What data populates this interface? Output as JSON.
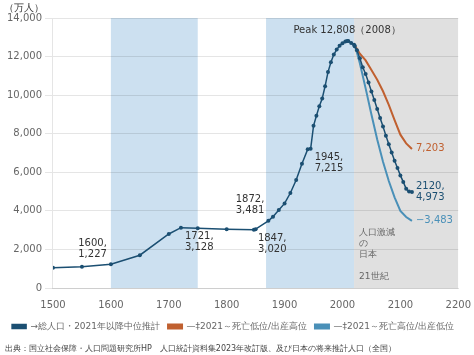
{
  "chart_data": {
    "type": "line",
    "ylabel": "（万人）",
    "source": "出典：国立社会保障・人口問題研究所HP　人口統計資料集2023年改訂版、及び日本の将来推計人口（全国）",
    "xlim": [
      1500,
      2200
    ],
    "ylim": [
      0,
      14000
    ],
    "xticks": [
      1500,
      1600,
      1700,
      1800,
      1900,
      2000,
      2100,
      2200
    ],
    "yticks": [
      0,
      {
        "value": 2000,
        "label": "2,000"
      },
      {
        "value": 4000,
        "label": "4,000"
      },
      {
        "value": 6000,
        "label": "6,000"
      },
      {
        "value": 8000,
        "label": "8,000"
      },
      {
        "value": 10000,
        "label": "10,000"
      },
      {
        "value": 12000,
        "label": "12,000"
      },
      {
        "value": 14000,
        "label": "14,000"
      }
    ],
    "grid": "y",
    "legend": "bottom",
    "shaded_regions": [
      {
        "x": [
          1600,
          1750
        ],
        "color": "#cce0f0"
      },
      {
        "x": [
          1868,
          2020
        ],
        "color": "#cce0f0"
      },
      {
        "x": [
          2020,
          2200
        ],
        "color": "#e0e0e0",
        "label": "人口激減\nの\n日本\n\n21世紀"
      }
    ],
    "series": [
      {
        "name": "→総人口・2021年以降中位推計",
        "color": "#1b4f72",
        "marker": "o",
        "end_label": "2120,\n4,973",
        "x": [
          1500,
          1550,
          1600,
          1650,
          1700,
          1721,
          1750,
          1800,
          1847,
          1850,
          1872,
          1880,
          1890,
          1900,
          1910,
          1920,
          1930,
          1940,
          1945,
          1950,
          1955,
          1960,
          1965,
          1970,
          1975,
          1980,
          1985,
          1990,
          1995,
          2000,
          2005,
          2008,
          2010,
          2015,
          2020,
          2021,
          2021,
          2025,
          2030,
          2035,
          2040,
          2045,
          2050,
          2055,
          2060,
          2065,
          2070,
          2075,
          2080,
          2085,
          2090,
          2095,
          2100,
          2105,
          2110,
          2115,
          2120
        ],
        "values": [
          1050,
          1100,
          1227,
          1700,
          2800,
          3128,
          3100,
          3050,
          3020,
          3050,
          3481,
          3700,
          4050,
          4385,
          4925,
          5596,
          6445,
          7193,
          7215,
          8411,
          8928,
          9430,
          9826,
          10467,
          11194,
          11706,
          12105,
          12361,
          12557,
          12693,
          12777,
          12808,
          12806,
          12709,
          12615,
          12550,
          12550,
          12330,
          11913,
          11450,
          11092,
          10650,
          10192,
          9750,
          9284,
          8820,
          8370,
          7900,
          7449,
          7020,
          6603,
          6220,
          5839,
          5500,
          5142,
          5000,
          4973
        ]
      },
      {
        "name": "—‡2021～死亡低位/出産高位",
        "color": "#c06030",
        "marker": "none",
        "end_label": "7,203",
        "x": [
          2021,
          2025,
          2030,
          2040,
          2050,
          2060,
          2070,
          2080,
          2090,
          2100,
          2110,
          2120
        ],
        "values": [
          12550,
          12400,
          12150,
          11800,
          11300,
          10800,
          10200,
          9500,
          8700,
          7950,
          7500,
          7203
        ]
      },
      {
        "name": "—‡2021～死亡高位/出産低位",
        "color": "#4a90b8",
        "marker": "none",
        "end_label": "−3,483",
        "x": [
          2021,
          2025,
          2030,
          2040,
          2050,
          2060,
          2070,
          2080,
          2090,
          2100,
          2110,
          2120
        ],
        "values": [
          12550,
          12200,
          11650,
          10350,
          9000,
          7700,
          6550,
          5550,
          4700,
          4000,
          3680,
          3483
        ]
      }
    ],
    "annotations": [
      {
        "x": 1600,
        "y": 1227,
        "label": "1600,\n1,227"
      },
      {
        "x": 1721,
        "y": 3128,
        "label": "1721,\n3,128"
      },
      {
        "x": 1847,
        "y": 3020,
        "label": "1847,\n3,020"
      },
      {
        "x": 1872,
        "y": 3481,
        "label": "1872,\n3,481"
      },
      {
        "x": 1945,
        "y": 7215,
        "label": "1945,\n7,215"
      },
      {
        "x": 2008,
        "y": 12808,
        "label": "Peak 12,808（2008）"
      }
    ]
  }
}
